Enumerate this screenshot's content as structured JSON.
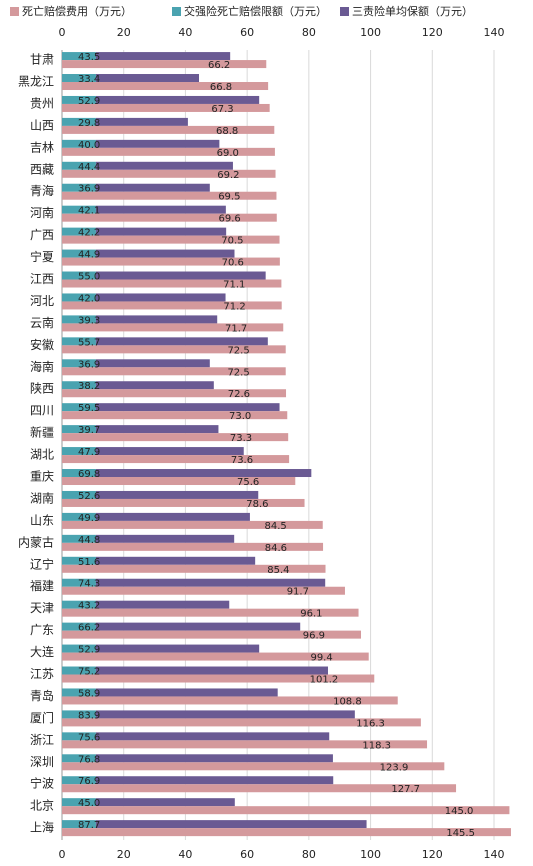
{
  "chart_data": {
    "type": "bar",
    "orientation": "horizontal",
    "categories": [
      "甘肃",
      "黑龙江",
      "贵州",
      "山西",
      "吉林",
      "西藏",
      "青海",
      "河南",
      "广西",
      "宁夏",
      "江西",
      "河北",
      "云南",
      "安徽",
      "海南",
      "陕西",
      "四川",
      "新疆",
      "湖北",
      "重庆",
      "湖南",
      "山东",
      "内蒙古",
      "辽宁",
      "福建",
      "天津",
      "广东",
      "大连",
      "江苏",
      "青岛",
      "厦门",
      "浙江",
      "深圳",
      "宁波",
      "北京",
      "上海"
    ],
    "series": [
      {
        "name": "死亡赔偿费用（万元）",
        "color": "#d4999c",
        "values": [
          66.2,
          66.8,
          67.3,
          68.8,
          69.0,
          69.2,
          69.5,
          69.6,
          70.5,
          70.6,
          71.1,
          71.2,
          71.7,
          72.5,
          72.5,
          72.6,
          73.0,
          73.3,
          73.6,
          75.6,
          78.6,
          84.5,
          84.6,
          85.4,
          91.7,
          96.1,
          96.9,
          99.4,
          101.2,
          108.8,
          116.3,
          118.3,
          123.9,
          127.7,
          145.0,
          145.5
        ],
        "value_labels": [
          "66.2",
          "66.8",
          "67.3",
          "68.8",
          "69.0",
          "69.2",
          "69.5",
          "69.6",
          "70.5",
          "70.6",
          "71.1",
          "71.2",
          "71.7",
          "72.5",
          "72.5",
          "72.6",
          "73.0",
          "73.3",
          "73.6",
          "75.6",
          "78.6",
          "84.5",
          "84.6",
          "85.4",
          "91.7",
          "96.1",
          "96.9",
          "99.4",
          "101.2",
          "108.8",
          "116.3",
          "118.3",
          "123.9",
          "127.7",
          "145.0",
          "145.5"
        ]
      },
      {
        "name": "交强险死亡赔偿限额（万元）",
        "color": "#4aa3b0",
        "values": [
          11,
          11,
          11,
          11,
          11,
          11,
          11,
          11,
          11,
          11,
          11,
          11,
          11,
          11,
          11,
          11,
          11,
          11,
          11,
          11,
          11,
          11,
          11,
          11,
          11,
          11,
          11,
          11,
          11,
          11,
          11,
          11,
          11,
          11,
          11,
          11
        ]
      },
      {
        "name": "三责险单均保额（万元）",
        "color": "#6a5a93",
        "values": [
          43.5,
          33.4,
          52.9,
          29.8,
          40.0,
          44.4,
          36.9,
          42.1,
          42.2,
          44.9,
          55.0,
          42.0,
          39.3,
          55.7,
          36.9,
          38.2,
          59.5,
          39.7,
          47.9,
          69.8,
          52.6,
          49.9,
          44.8,
          51.6,
          74.3,
          43.2,
          66.2,
          52.9,
          75.2,
          58.9,
          83.9,
          75.6,
          76.8,
          76.9,
          45.0,
          87.7
        ],
        "value_labels": [
          "43.5",
          "33.4",
          "52.9",
          "29.8",
          "40.0",
          "44.4",
          "36.9",
          "42.1",
          "42.2",
          "44.9",
          "55.0",
          "42.0",
          "39.3",
          "55.7",
          "36.9",
          "38.2",
          "59.5",
          "39.7",
          "47.9",
          "69.8",
          "52.6",
          "49.9",
          "44.8",
          "51.6",
          "74.3",
          "43.2",
          "66.2",
          "52.9",
          "75.2",
          "58.9",
          "83.9",
          "75.6",
          "76.8",
          "76.9",
          "45.0",
          "87.7"
        ]
      }
    ],
    "xlim": [
      0,
      140
    ],
    "xticks": [
      0,
      20,
      40,
      60,
      80,
      100,
      120,
      140
    ],
    "grid": true
  }
}
